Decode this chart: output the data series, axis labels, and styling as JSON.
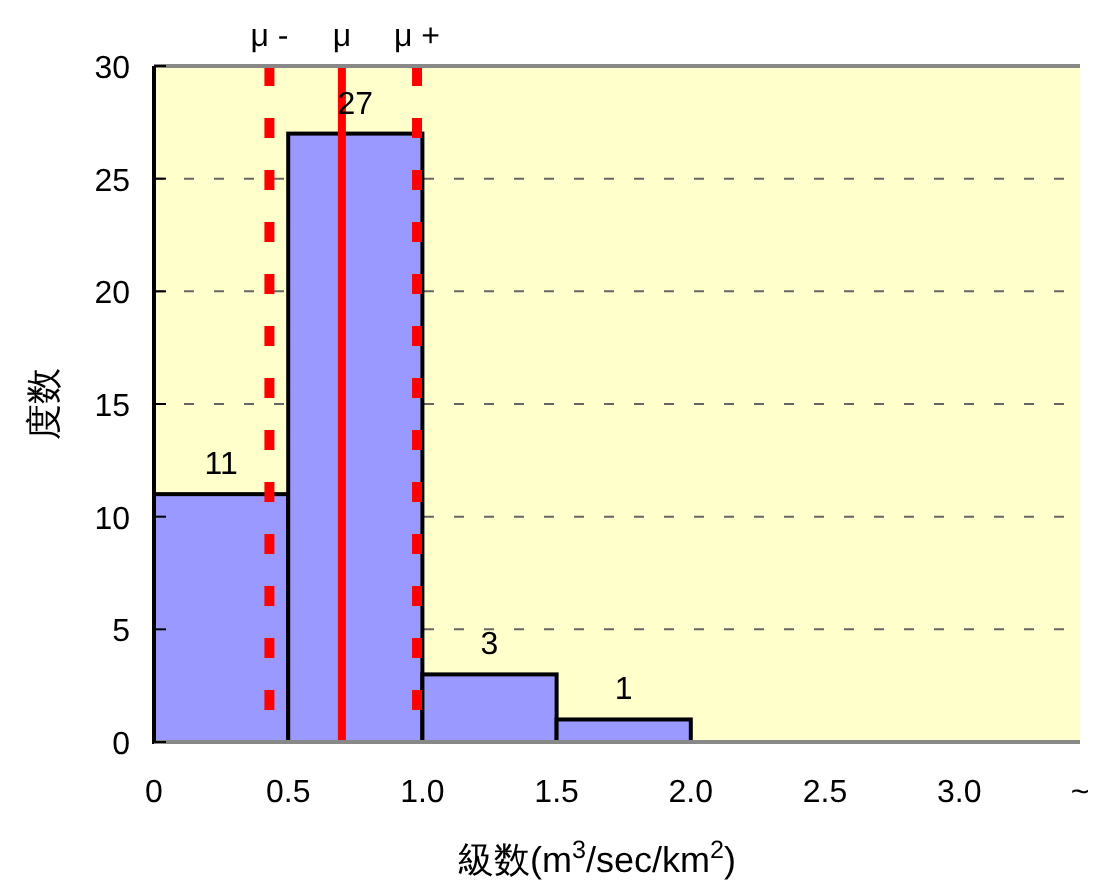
{
  "chart_data": {
    "type": "histogram",
    "xlabel": "級数(m$^{3}$/sec/km$^{2}$)",
    "ylabel": "度数",
    "bins": [
      0,
      0.5,
      1.0,
      1.5,
      2.0
    ],
    "values": [
      11,
      27,
      3,
      1
    ],
    "color": "#9999ff",
    "value_labels": [
      "11",
      "27",
      "3",
      "1"
    ],
    "xlim": [
      0,
      3.45
    ],
    "xticks": [
      0,
      0.5,
      {
        "value": 1.0,
        "label": "1.0"
      },
      1.5,
      {
        "value": 2.0,
        "label": "2.0"
      },
      2.5,
      {
        "value": 3.0,
        "label": "3.0"
      },
      {
        "value": 3.45,
        "label": "~"
      }
    ],
    "ylim": [
      0,
      30
    ],
    "yticks": [
      0,
      5,
      10,
      15,
      20,
      25,
      30
    ],
    "grid": "y",
    "ref_lines": [
      {
        "axis": "x",
        "value": 0.43,
        "label": "μ -",
        "color": "#ff0000",
        "line_style": "dashed"
      },
      {
        "axis": "x",
        "value": 0.7,
        "label": "μ",
        "color": "#ff0000",
        "line_style": "solid"
      },
      {
        "axis": "x",
        "value": 0.98,
        "label": "μ +",
        "color": "#ff0000",
        "line_style": "dashed"
      }
    ]
  }
}
